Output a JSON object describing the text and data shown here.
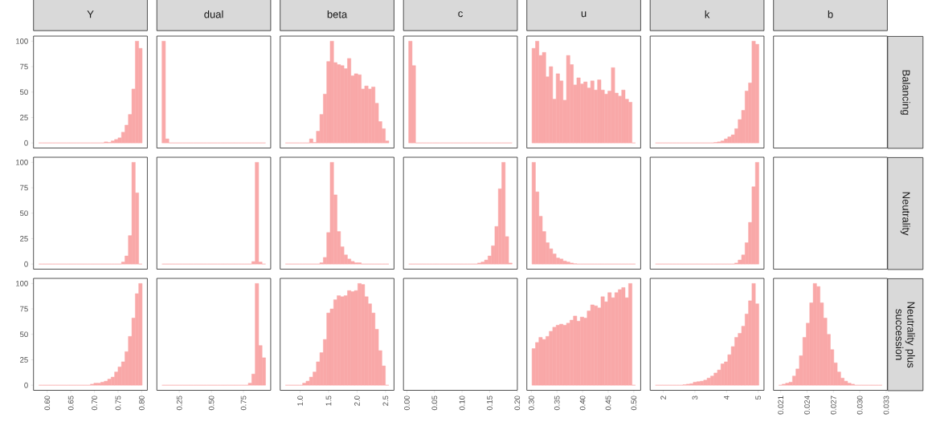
{
  "chart_data": [
    {
      "type": "histogram",
      "title": "Y",
      "color": "#f9a8a8",
      "bins": [
        0.582,
        0.5893,
        0.5966,
        0.6039,
        0.6112,
        0.6185,
        0.6258,
        0.6331,
        0.6404,
        0.6477,
        0.655,
        0.6623,
        0.6696,
        0.6769,
        0.6842,
        0.6915,
        0.6988,
        0.7061,
        0.7134,
        0.7207,
        0.728,
        0.7353,
        0.7426,
        0.7499,
        0.7572,
        0.7645,
        0.7718,
        0.7791,
        0.7864,
        0.7937,
        0.801
      ],
      "values": [
        0,
        0,
        0,
        0,
        0,
        0,
        0,
        0,
        0,
        0,
        0,
        0,
        0,
        0,
        0,
        0,
        0,
        0,
        0,
        1,
        0.5,
        2,
        3.4,
        5,
        10.5,
        17.5,
        28,
        53,
        100,
        93
      ],
      "xlim": [
        0.571,
        0.812
      ],
      "ylim": [
        -5,
        105
      ],
      "yticks": [
        0,
        25,
        50,
        75,
        100
      ],
      "tick_labels": "y"
    },
    {
      "type": "histogram",
      "title": "dual",
      "color": "#f9a8a8",
      "bins": [
        0.115,
        0.1419,
        0.1688,
        0.1957,
        0.2226,
        0.2495,
        0.2764,
        0.3033,
        0.3302,
        0.3571,
        0.384,
        0.4109,
        0.4378,
        0.4647,
        0.4916,
        0.5185,
        0.5454,
        0.5723,
        0.5992,
        0.6261,
        0.653,
        0.6799,
        0.7068,
        0.7337,
        0.7606,
        0.7875,
        0.8144,
        0.8413,
        0.8682,
        0.8951,
        0.922
      ],
      "values": [
        100,
        4,
        0,
        0,
        0,
        0,
        0,
        0,
        0,
        0,
        0,
        0,
        0,
        0,
        0,
        0,
        0,
        0,
        0,
        0,
        0,
        0,
        0,
        0,
        0,
        0,
        0,
        0,
        0,
        0
      ],
      "xlim": [
        0.075,
        0.962
      ],
      "ylim": [
        -5,
        105
      ],
      "tick_labels": false
    },
    {
      "type": "histogram",
      "title": "beta",
      "color": "#f9a8a8",
      "bins": [
        0.74,
        0.8006,
        0.8612,
        0.9218,
        0.9824,
        1.043,
        1.1036,
        1.1642,
        1.2248,
        1.2854,
        1.346,
        1.4066,
        1.4672,
        1.5278,
        1.5884,
        1.649,
        1.7096,
        1.7702,
        1.8308,
        1.8914,
        1.952,
        2.0126,
        2.0732,
        2.1338,
        2.1944,
        2.255,
        2.3156,
        2.3762,
        2.4368,
        2.4974,
        2.558
      ],
      "values": [
        0,
        0,
        0,
        0,
        0,
        0,
        0,
        4,
        0.5,
        11.5,
        28,
        48,
        80,
        100,
        79,
        77,
        76,
        73,
        83,
        66,
        68,
        67,
        53,
        56,
        53,
        55,
        39,
        21,
        14,
        2
      ],
      "xlim": [
        0.649,
        2.649
      ],
      "ylim": [
        -5,
        105
      ],
      "tick_labels": false
    },
    {
      "type": "histogram",
      "title": "c",
      "color": "#f9a8a8",
      "bins": [
        0.0032,
        0.00945,
        0.0157,
        0.02195,
        0.0282,
        0.03445,
        0.0407,
        0.04695,
        0.0532,
        0.05945,
        0.0657,
        0.07195,
        0.0782,
        0.08445,
        0.0907,
        0.09695,
        0.1032,
        0.10945,
        0.1157,
        0.12195,
        0.1282,
        0.13445,
        0.1407,
        0.14695,
        0.1532,
        0.15945,
        0.1657,
        0.17195,
        0.1782,
        0.18445,
        0.1907
      ],
      "values": [
        100,
        76,
        0,
        0,
        0,
        0,
        0,
        0,
        0,
        0,
        0,
        0,
        0,
        0,
        0,
        0,
        0,
        0,
        0,
        0,
        0,
        0,
        0,
        0,
        0,
        0,
        0,
        0,
        0,
        0
      ],
      "xlim": [
        -0.0062,
        0.2002
      ],
      "ylim": [
        -5,
        105
      ],
      "tick_labels": false
    },
    {
      "type": "histogram",
      "title": "u",
      "color": "#f9a8a8",
      "bins": [
        0.3013,
        0.30803,
        0.31476,
        0.32149,
        0.32822,
        0.33495,
        0.34168,
        0.34841,
        0.35514,
        0.36187,
        0.3686,
        0.37533,
        0.38206,
        0.38879,
        0.39552,
        0.40225,
        0.40898,
        0.41571,
        0.42244,
        0.42917,
        0.4359,
        0.44263,
        0.44936,
        0.45609,
        0.46282,
        0.46955,
        0.47628,
        0.48301,
        0.48974,
        0.49647,
        0.5032
      ],
      "values": [
        93,
        100,
        86,
        89,
        65,
        75,
        43,
        68,
        61,
        42,
        86,
        77,
        57,
        64,
        58,
        60,
        54,
        61,
        52,
        62,
        52,
        48,
        51,
        74,
        49,
        46,
        52,
        43,
        40,
        0
      ],
      "xlim": [
        0.2912,
        0.5134
      ],
      "ylim": [
        -5,
        105
      ],
      "tick_labels": false
    },
    {
      "type": "histogram",
      "title": "k",
      "color": "#f9a8a8",
      "bins": [
        1.75,
        1.859,
        1.968,
        2.077,
        2.186,
        2.295,
        2.404,
        2.513,
        2.622,
        2.731,
        2.84,
        2.949,
        3.058,
        3.167,
        3.276,
        3.385,
        3.494,
        3.603,
        3.712,
        3.821,
        3.93,
        4.039,
        4.148,
        4.257,
        4.366,
        4.475,
        4.584,
        4.693,
        4.802,
        4.911,
        5.02
      ],
      "values": [
        0,
        0,
        0,
        0,
        0,
        0,
        0,
        0,
        0,
        0,
        0,
        0,
        0,
        0,
        0,
        0,
        0,
        0.5,
        1,
        2,
        4,
        6,
        8,
        14,
        23,
        32,
        51,
        59,
        100,
        97
      ],
      "xlim": [
        1.5865,
        5.1835
      ],
      "ylim": [
        -5,
        105
      ],
      "tick_labels": false
    },
    {
      "type": "histogram",
      "title": "b",
      "y2label": "Balancing",
      "xlim": [
        0.02018,
        0.03313
      ],
      "ylim": [
        -5,
        105
      ],
      "tick_labels": false
    },
    {
      "type": "histogram",
      "color": "#f9a8a8",
      "bins": [
        0.582,
        0.5893,
        0.5966,
        0.6039,
        0.6112,
        0.6185,
        0.6258,
        0.6331,
        0.6404,
        0.6477,
        0.655,
        0.6623,
        0.6696,
        0.6769,
        0.6842,
        0.6915,
        0.6988,
        0.7061,
        0.7134,
        0.7207,
        0.728,
        0.7353,
        0.7426,
        0.7499,
        0.7572,
        0.7645,
        0.7718,
        0.7791,
        0.7864,
        0.7937,
        0.801
      ],
      "values": [
        0,
        0,
        0,
        0,
        0,
        0,
        0,
        0,
        0,
        0,
        0,
        0,
        0,
        0,
        0,
        0,
        0,
        0,
        0,
        0,
        0,
        0,
        0,
        0,
        2,
        8,
        28,
        100,
        70,
        0
      ],
      "xlim": [
        0.571,
        0.812
      ],
      "ylim": [
        -5,
        105
      ],
      "yticks": [
        0,
        25,
        50,
        75,
        100
      ],
      "tick_labels": "y"
    },
    {
      "type": "histogram",
      "color": "#f9a8a8",
      "bins": [
        0.115,
        0.1419,
        0.1688,
        0.1957,
        0.2226,
        0.2495,
        0.2764,
        0.3033,
        0.3302,
        0.3571,
        0.384,
        0.4109,
        0.4378,
        0.4647,
        0.4916,
        0.5185,
        0.5454,
        0.5723,
        0.5992,
        0.6261,
        0.653,
        0.6799,
        0.7068,
        0.7337,
        0.7606,
        0.7875,
        0.8144,
        0.8413,
        0.8682,
        0.8951,
        0.922
      ],
      "values": [
        0,
        0,
        0,
        0,
        0,
        0,
        0,
        0,
        0,
        0,
        0,
        0,
        0,
        0,
        0,
        0,
        0,
        0,
        0,
        0,
        0,
        0,
        0,
        0,
        0,
        0,
        2.5,
        100,
        2,
        0
      ],
      "xlim": [
        0.075,
        0.962
      ],
      "ylim": [
        -5,
        105
      ],
      "tick_labels": false
    },
    {
      "type": "histogram",
      "color": "#f9a8a8",
      "bins": [
        0.74,
        0.8006,
        0.8612,
        0.9218,
        0.9824,
        1.043,
        1.1036,
        1.1642,
        1.2248,
        1.2854,
        1.346,
        1.4066,
        1.4672,
        1.5278,
        1.5884,
        1.649,
        1.7096,
        1.7702,
        1.8308,
        1.8914,
        1.952,
        2.0126,
        2.0732,
        2.1338,
        2.1944,
        2.255,
        2.3156,
        2.3762,
        2.4368,
        2.4974,
        2.558
      ],
      "values": [
        0,
        0,
        0,
        0,
        0,
        0,
        0,
        0,
        0,
        0,
        1.3,
        6.5,
        31,
        100,
        68,
        32,
        17,
        9,
        5,
        2.6,
        1.3,
        1.3,
        0,
        0,
        0,
        0,
        0,
        0,
        0,
        0
      ],
      "xlim": [
        0.649,
        2.649
      ],
      "ylim": [
        -5,
        105
      ],
      "tick_labels": false
    },
    {
      "type": "histogram",
      "color": "#f9a8a8",
      "bins": [
        0.0032,
        0.00945,
        0.0157,
        0.02195,
        0.0282,
        0.03445,
        0.0407,
        0.04695,
        0.0532,
        0.05945,
        0.0657,
        0.07195,
        0.0782,
        0.08445,
        0.0907,
        0.09695,
        0.1032,
        0.10945,
        0.1157,
        0.12195,
        0.1282,
        0.13445,
        0.1407,
        0.14695,
        0.1532,
        0.15945,
        0.1657,
        0.17195,
        0.1782,
        0.18445,
        0.1907
      ],
      "values": [
        0,
        0,
        0,
        0,
        0,
        0,
        0,
        0,
        0,
        0,
        0,
        0,
        0,
        0,
        0,
        0,
        0,
        0,
        0,
        0,
        1,
        2,
        4,
        8,
        18,
        37,
        74,
        100,
        27,
        1
      ],
      "xlim": [
        -0.0062,
        0.2002
      ],
      "ylim": [
        -5,
        105
      ],
      "tick_labels": false
    },
    {
      "type": "histogram",
      "color": "#f9a8a8",
      "bins": [
        0.3013,
        0.30803,
        0.31476,
        0.32149,
        0.32822,
        0.33495,
        0.34168,
        0.34841,
        0.35514,
        0.36187,
        0.3686,
        0.37533,
        0.38206,
        0.38879,
        0.39552,
        0.40225,
        0.40898,
        0.41571,
        0.42244,
        0.42917,
        0.4359,
        0.44263,
        0.44936,
        0.45609,
        0.46282,
        0.46955,
        0.47628,
        0.48301,
        0.48974,
        0.49647,
        0.5032
      ],
      "values": [
        100,
        71,
        47,
        32,
        21,
        15,
        10,
        6,
        5,
        3,
        2,
        1,
        0.3,
        0,
        0,
        0,
        0,
        0,
        0,
        0,
        0,
        0,
        0,
        0,
        0,
        0,
        0,
        0,
        0,
        0
      ],
      "xlim": [
        0.2912,
        0.5134
      ],
      "ylim": [
        -5,
        105
      ],
      "tick_labels": false
    },
    {
      "type": "histogram",
      "color": "#f9a8a8",
      "bins": [
        1.75,
        1.859,
        1.968,
        2.077,
        2.186,
        2.295,
        2.404,
        2.513,
        2.622,
        2.731,
        2.84,
        2.949,
        3.058,
        3.167,
        3.276,
        3.385,
        3.494,
        3.603,
        3.712,
        3.821,
        3.93,
        4.039,
        4.148,
        4.257,
        4.366,
        4.475,
        4.584,
        4.693,
        4.802,
        4.911,
        5.02
      ],
      "values": [
        0,
        0,
        0,
        0,
        0,
        0,
        0,
        0,
        0,
        0,
        0,
        0,
        0,
        0,
        0,
        0,
        0,
        0,
        0,
        0,
        0,
        0,
        0,
        1,
        4,
        9,
        21,
        41,
        76,
        100
      ],
      "xlim": [
        1.5865,
        5.1835
      ],
      "ylim": [
        -5,
        105
      ],
      "tick_labels": false
    },
    {
      "type": "histogram",
      "y2label": "Neutrality",
      "xlim": [
        0.02018,
        0.03313
      ],
      "ylim": [
        -5,
        105
      ],
      "tick_labels": false
    },
    {
      "type": "histogram",
      "color": "#f9a8a8",
      "bins": [
        0.582,
        0.5893,
        0.5966,
        0.6039,
        0.6112,
        0.6185,
        0.6258,
        0.6331,
        0.6404,
        0.6477,
        0.655,
        0.6623,
        0.6696,
        0.6769,
        0.6842,
        0.6915,
        0.6988,
        0.7061,
        0.7134,
        0.7207,
        0.728,
        0.7353,
        0.7426,
        0.7499,
        0.7572,
        0.7645,
        0.7718,
        0.7791,
        0.7864,
        0.7937,
        0.801
      ],
      "values": [
        0,
        0,
        0,
        0,
        0,
        0,
        0,
        0,
        0,
        0,
        0,
        0,
        0,
        0,
        0,
        1,
        2,
        2,
        3,
        4,
        6,
        8,
        13,
        18,
        23,
        33,
        48,
        66,
        90,
        100
      ],
      "xlim": [
        0.571,
        0.812
      ],
      "xticks": [
        {
          "value": 0.6,
          "label": "0.60"
        },
        0.65,
        {
          "value": 0.7,
          "label": "0.70"
        },
        0.75,
        {
          "value": 0.8,
          "label": "0.80"
        }
      ],
      "ylim": [
        -5,
        105
      ],
      "yticks": [
        0,
        25,
        50,
        75,
        100
      ]
    },
    {
      "type": "histogram",
      "color": "#f9a8a8",
      "bins": [
        0.115,
        0.1419,
        0.1688,
        0.1957,
        0.2226,
        0.2495,
        0.2764,
        0.3033,
        0.3302,
        0.3571,
        0.384,
        0.4109,
        0.4378,
        0.4647,
        0.4916,
        0.5185,
        0.5454,
        0.5723,
        0.5992,
        0.6261,
        0.653,
        0.6799,
        0.7068,
        0.7337,
        0.7606,
        0.7875,
        0.8144,
        0.8413,
        0.8682,
        0.8951,
        0.922
      ],
      "values": [
        0,
        0,
        0,
        0,
        0,
        0,
        0,
        0,
        0,
        0,
        0,
        0,
        0,
        0,
        0,
        0,
        0,
        0,
        0,
        0,
        0,
        0,
        0,
        0,
        0,
        2,
        11,
        100,
        39,
        27
      ],
      "xlim": [
        0.075,
        0.962
      ],
      "xticks": [
        0.25,
        {
          "value": 0.5,
          "label": "0.50"
        },
        0.75
      ],
      "ylim": [
        -5,
        105
      ],
      "tick_labels": "x"
    },
    {
      "type": "histogram",
      "color": "#f9a8a8",
      "bins": [
        0.74,
        0.8006,
        0.8612,
        0.9218,
        0.9824,
        1.043,
        1.1036,
        1.1642,
        1.2248,
        1.2854,
        1.346,
        1.4066,
        1.4672,
        1.5278,
        1.5884,
        1.649,
        1.7096,
        1.7702,
        1.8308,
        1.8914,
        1.952,
        2.0126,
        2.0732,
        2.1338,
        2.1944,
        2.255,
        2.3156,
        2.3762,
        2.4368,
        2.4974,
        2.558
      ],
      "values": [
        0,
        0,
        0,
        0,
        0,
        2,
        4,
        8,
        13,
        23,
        32,
        45,
        71,
        75,
        84,
        88,
        87,
        88,
        93,
        92,
        93,
        100,
        99,
        87,
        80,
        71,
        55,
        34,
        19,
        0
      ],
      "xlim": [
        0.649,
        2.649
      ],
      "xticks": [
        {
          "value": 1,
          "label": "1.0"
        },
        1.5,
        {
          "value": 2,
          "label": "2.0"
        },
        2.5
      ],
      "ylim": [
        -5,
        105
      ],
      "tick_labels": "x"
    },
    {
      "type": "histogram",
      "xlim": [
        -0.0062,
        0.2002
      ],
      "xticks": [
        {
          "value": 0,
          "label": "0.00"
        },
        0.05,
        {
          "value": 0.1,
          "label": "0.10"
        },
        0.15,
        {
          "value": 0.2,
          "label": "0.20"
        }
      ],
      "ylim": [
        -5,
        105
      ],
      "tick_labels": "x"
    },
    {
      "type": "histogram",
      "color": "#f9a8a8",
      "bins": [
        0.3013,
        0.30803,
        0.31476,
        0.32149,
        0.32822,
        0.33495,
        0.34168,
        0.34841,
        0.35514,
        0.36187,
        0.3686,
        0.37533,
        0.38206,
        0.38879,
        0.39552,
        0.40225,
        0.40898,
        0.41571,
        0.42244,
        0.42917,
        0.4359,
        0.44263,
        0.44936,
        0.45609,
        0.46282,
        0.46955,
        0.47628,
        0.48301,
        0.48974,
        0.49647,
        0.5032
      ],
      "values": [
        36,
        42,
        47,
        45,
        48,
        53,
        57,
        59,
        60,
        59,
        61,
        64,
        68,
        63,
        67,
        66,
        73,
        79,
        78,
        76,
        87,
        82,
        91,
        86,
        91,
        94,
        96,
        86,
        100,
        0
      ],
      "xlim": [
        0.2912,
        0.5134
      ],
      "xticks": [
        {
          "value": 0.3,
          "label": "0.30"
        },
        0.35,
        {
          "value": 0.4,
          "label": "0.40"
        },
        0.45,
        {
          "value": 0.5,
          "label": "0.50"
        }
      ],
      "ylim": [
        -5,
        105
      ],
      "tick_labels": "x"
    },
    {
      "type": "histogram",
      "color": "#f9a8a8",
      "bins": [
        1.75,
        1.859,
        1.968,
        2.077,
        2.186,
        2.295,
        2.404,
        2.513,
        2.622,
        2.731,
        2.84,
        2.949,
        3.058,
        3.167,
        3.276,
        3.385,
        3.494,
        3.603,
        3.712,
        3.821,
        3.93,
        4.039,
        4.148,
        4.257,
        4.366,
        4.475,
        4.584,
        4.693,
        4.802,
        4.911,
        5.02
      ],
      "values": [
        0,
        0,
        0,
        0,
        0,
        0,
        0,
        0,
        0.5,
        1,
        1.5,
        3,
        3.5,
        4,
        5,
        7,
        9,
        12,
        15,
        21,
        23,
        30,
        38,
        47,
        51,
        58,
        70,
        83,
        100,
        80
      ],
      "xlim": [
        1.5865,
        5.1835
      ],
      "xticks": [
        2,
        3,
        4,
        5
      ],
      "ylim": [
        -5,
        105
      ],
      "tick_labels": "x"
    },
    {
      "type": "histogram",
      "y2label": "Neutrality plus succession",
      "color": "#f9a8a8",
      "bins": [
        0.02077,
        0.021162,
        0.021554,
        0.021946,
        0.022338,
        0.02273,
        0.023122,
        0.023514,
        0.023906,
        0.024298,
        0.02469,
        0.025082,
        0.025474,
        0.025866,
        0.026258,
        0.02665,
        0.027042,
        0.027434,
        0.027826,
        0.028218,
        0.02861,
        0.029002,
        0.029394,
        0.029786,
        0.030178,
        0.03057,
        0.030962,
        0.031354,
        0.031746,
        0.032138,
        0.03253
      ],
      "values": [
        0,
        1,
        2,
        3,
        9,
        16,
        29,
        47,
        61,
        81,
        100,
        97,
        81,
        66,
        50,
        35,
        22,
        13,
        7,
        4,
        2,
        1,
        0,
        0,
        0,
        0,
        0,
        0,
        0,
        0
      ],
      "xlim": [
        0.02018,
        0.03313
      ],
      "xticks": [
        0.021,
        0.024,
        0.027,
        {
          "value": 0.03,
          "label": "0.030"
        },
        0.033
      ],
      "ylim": [
        -5,
        105
      ],
      "tick_labels": "x"
    }
  ]
}
